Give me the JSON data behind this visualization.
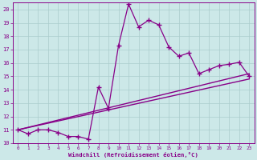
{
  "xlabel": "Windchill (Refroidissement éolien,°C)",
  "ylabel": "",
  "xlim": [
    -0.5,
    23.5
  ],
  "ylim": [
    10,
    20.5
  ],
  "yticks": [
    10,
    11,
    12,
    13,
    14,
    15,
    16,
    17,
    18,
    19,
    20
  ],
  "xticks": [
    0,
    1,
    2,
    3,
    4,
    5,
    6,
    7,
    8,
    9,
    10,
    11,
    12,
    13,
    14,
    15,
    16,
    17,
    18,
    19,
    20,
    21,
    22,
    23
  ],
  "bg_color": "#cce8e8",
  "line_color": "#880088",
  "grid_color": "#aacccc",
  "data_line": {
    "x": [
      0,
      1,
      2,
      3,
      4,
      5,
      6,
      7,
      8,
      9,
      10,
      11,
      12,
      13,
      14,
      15,
      16,
      17,
      18,
      19,
      20,
      21,
      22,
      23
    ],
    "y": [
      11.0,
      10.7,
      11.0,
      11.0,
      10.8,
      10.5,
      10.5,
      10.3,
      14.2,
      12.6,
      17.3,
      20.4,
      18.7,
      19.2,
      18.85,
      17.2,
      16.5,
      16.75,
      15.2,
      15.5,
      15.8,
      15.9,
      16.05,
      15.0
    ]
  },
  "line1": {
    "x": [
      0,
      23
    ],
    "y": [
      11.0,
      15.2
    ]
  },
  "line2": {
    "x": [
      0,
      23
    ],
    "y": [
      11.0,
      14.8
    ]
  }
}
